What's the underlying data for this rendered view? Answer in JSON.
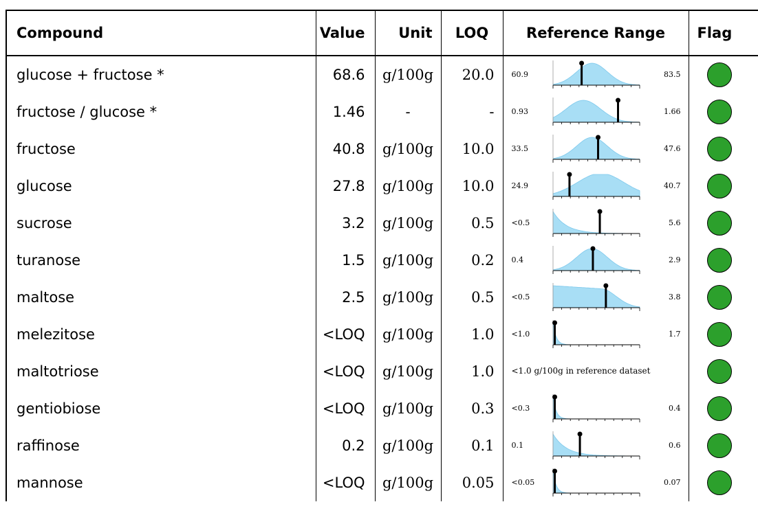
{
  "headers": {
    "compound": "Compound",
    "value": "Value",
    "unit": "Unit",
    "loq": "LOQ",
    "range": "Reference Range",
    "flag": "Flag"
  },
  "colors": {
    "density_fill": "#a8def5",
    "density_line": "#7cc8ec",
    "flag_ok": "#2ca02c"
  },
  "rows": [
    {
      "compound": "glucose + fructose *",
      "value": "68.6",
      "unit": "g/100g",
      "loq": "20.0",
      "range_low": "60.9",
      "range_high": "83.5",
      "range_note": "",
      "marker_pos": 0.33,
      "dist_shape": "mid",
      "flag": "ok"
    },
    {
      "compound": "fructose / glucose *",
      "value": "1.46",
      "unit": "-",
      "loq": "-",
      "range_low": "0.93",
      "range_high": "1.66",
      "range_note": "",
      "marker_pos": 0.75,
      "dist_shape": "midleft",
      "flag": "ok"
    },
    {
      "compound": "fructose",
      "value": "40.8",
      "unit": "g/100g",
      "loq": "10.0",
      "range_low": "33.5",
      "range_high": "47.6",
      "range_note": "",
      "marker_pos": 0.52,
      "dist_shape": "mid",
      "flag": "ok"
    },
    {
      "compound": "glucose",
      "value": "27.8",
      "unit": "g/100g",
      "loq": "10.0",
      "range_low": "24.9",
      "range_high": "40.7",
      "range_note": "",
      "marker_pos": 0.19,
      "dist_shape": "wide",
      "flag": "ok"
    },
    {
      "compound": "sucrose",
      "value": "3.2",
      "unit": "g/100g",
      "loq": "0.5",
      "range_low": "<0.5",
      "range_high": "5.6",
      "range_note": "",
      "marker_pos": 0.54,
      "dist_shape": "decay",
      "flag": "ok"
    },
    {
      "compound": "turanose",
      "value": "1.5",
      "unit": "g/100g",
      "loq": "0.2",
      "range_low": "0.4",
      "range_high": "2.9",
      "range_note": "",
      "marker_pos": 0.46,
      "dist_shape": "mid",
      "flag": "ok"
    },
    {
      "compound": "maltose",
      "value": "2.5",
      "unit": "g/100g",
      "loq": "0.5",
      "range_low": "<0.5",
      "range_high": "3.8",
      "range_note": "",
      "marker_pos": 0.61,
      "dist_shape": "plateau",
      "flag": "ok"
    },
    {
      "compound": "melezitose",
      "value": "<LOQ",
      "unit": "g/100g",
      "loq": "1.0",
      "range_low": "<1.0",
      "range_high": "1.7",
      "range_note": "",
      "marker_pos": 0.02,
      "dist_shape": "spike",
      "flag": "ok"
    },
    {
      "compound": "maltotriose",
      "value": "<LOQ",
      "unit": "g/100g",
      "loq": "1.0",
      "range_low": "",
      "range_high": "",
      "range_note": "<1.0 g/100g in reference dataset",
      "marker_pos": null,
      "dist_shape": "none",
      "flag": "ok"
    },
    {
      "compound": "gentiobiose",
      "value": "<LOQ",
      "unit": "g/100g",
      "loq": "0.3",
      "range_low": "<0.3",
      "range_high": "0.4",
      "range_note": "",
      "marker_pos": 0.02,
      "dist_shape": "spike",
      "flag": "ok"
    },
    {
      "compound": "raffinose",
      "value": "0.2",
      "unit": "g/100g",
      "loq": "0.1",
      "range_low": "0.1",
      "range_high": "0.6",
      "range_note": "",
      "marker_pos": 0.31,
      "dist_shape": "decay",
      "flag": "ok"
    },
    {
      "compound": "mannose",
      "value": "<LOQ",
      "unit": "g/100g",
      "loq": "0.05",
      "range_low": "<0.05",
      "range_high": "0.07",
      "range_note": "",
      "marker_pos": 0.02,
      "dist_shape": "spike",
      "flag": "ok"
    }
  ]
}
